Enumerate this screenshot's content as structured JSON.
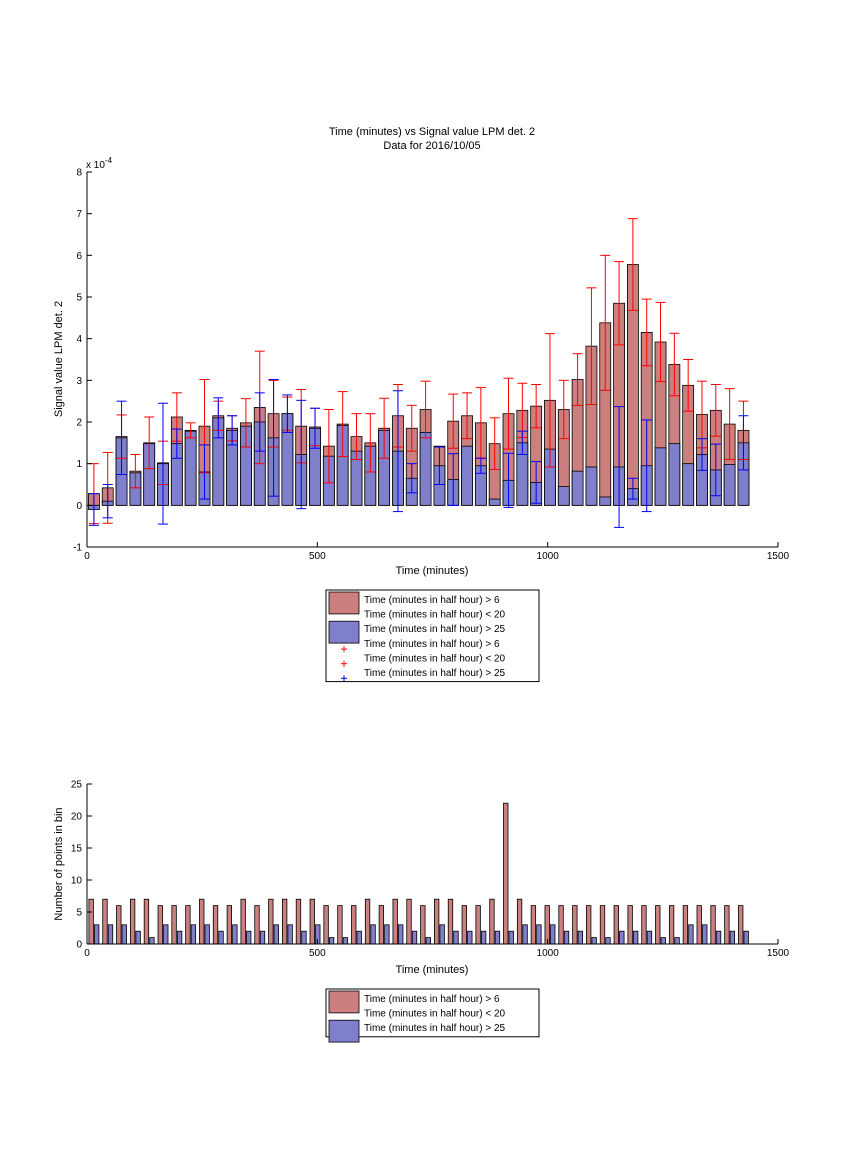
{
  "chart_data": [
    {
      "type": "bar",
      "title": "Time (minutes) vs Signal value LPM det. 2",
      "subtitle": "Data for 2016/10/05",
      "xlabel": "Time (minutes)",
      "ylabel": "Signal value LPM det. 2",
      "exponent_label": "x 10",
      "exponent_power": "-4",
      "xlim": [
        0,
        1500
      ],
      "ylim": [
        -1,
        8
      ],
      "xticks": [
        0,
        500,
        1000,
        1500
      ],
      "yticks": [
        -1,
        0,
        1,
        2,
        3,
        4,
        5,
        6,
        7,
        8
      ],
      "legend_position": "below",
      "legend": [
        {
          "label": "Time (minutes in half hour) > 6",
          "kind": "bar",
          "color": "#cc7f7f"
        },
        {
          "label": "Time (minutes in half hour) < 20",
          "kind": "none",
          "color": ""
        },
        {
          "label": "Time (minutes in half hour) > 25",
          "kind": "bar",
          "color": "#7f7fcc"
        },
        {
          "label": "Time (minutes in half hour) > 6",
          "kind": "plus",
          "color": "#ff0000"
        },
        {
          "label": "Time (minutes in half hour) < 20",
          "kind": "plus",
          "color": "#ff0000"
        },
        {
          "label": "Time (minutes in half hour) > 25",
          "kind": "plus",
          "color": "#0000ff"
        }
      ],
      "series": [
        {
          "color": "#cc7f7f",
          "err_color": "#ff0000",
          "x": [
            15,
            45,
            75,
            105,
            135,
            165,
            195,
            225,
            255,
            285,
            315,
            345,
            375,
            405,
            435,
            465,
            495,
            525,
            555,
            585,
            615,
            645,
            675,
            705,
            735,
            765,
            795,
            825,
            855,
            885,
            915,
            945,
            975,
            1005,
            1035,
            1065,
            1095,
            1125,
            1155,
            1185,
            1215,
            1245,
            1275,
            1305,
            1335,
            1365,
            1395,
            1425
          ],
          "values": [
            0.28,
            0.42,
            1.65,
            0.82,
            1.5,
            1.02,
            2.12,
            1.8,
            1.9,
            2.15,
            1.85,
            1.98,
            2.35,
            2.2,
            2.2,
            1.9,
            1.88,
            1.42,
            1.95,
            1.65,
            1.5,
            1.85,
            2.15,
            1.85,
            2.3,
            1.42,
            2.02,
            2.15,
            1.98,
            1.48,
            2.2,
            2.28,
            2.38,
            2.52,
            2.3,
            3.02,
            3.82,
            4.38,
            4.85,
            5.78,
            4.15,
            3.92,
            3.38,
            2.88,
            2.18,
            2.28,
            1.95,
            1.8
          ],
          "err": [
            0.72,
            0.85,
            0.52,
            0.4,
            0.62,
            0.52,
            0.58,
            0.18,
            1.12,
            0.35,
            0.3,
            0.58,
            1.35,
            0.8,
            0.4,
            0.88,
            0.45,
            0.88,
            0.78,
            0.55,
            0.7,
            0.72,
            0.75,
            0.55,
            0.68,
            0.0,
            0.65,
            0.55,
            0.85,
            0.62,
            0.85,
            0.65,
            0.52,
            1.6,
            0.7,
            0.62,
            1.4,
            1.62,
            1.0,
            1.1,
            0.8,
            0.95,
            0.75,
            0.62,
            0.8,
            0.62,
            0.85,
            0.7
          ]
        },
        {
          "color": "#7f7fcc",
          "err_color": "#0000ff",
          "x": [
            15,
            45,
            75,
            105,
            135,
            165,
            195,
            225,
            255,
            285,
            315,
            345,
            375,
            405,
            435,
            465,
            495,
            525,
            555,
            585,
            615,
            645,
            675,
            705,
            735,
            765,
            795,
            825,
            855,
            885,
            915,
            945,
            975,
            1005,
            1035,
            1065,
            1095,
            1125,
            1155,
            1185,
            1215,
            1245,
            1275,
            1305,
            1335,
            1365,
            1395,
            1425
          ],
          "values": [
            -0.1,
            0.1,
            1.62,
            0.78,
            1.48,
            1.0,
            1.48,
            1.78,
            0.8,
            2.1,
            1.8,
            1.9,
            2.0,
            1.62,
            2.2,
            1.22,
            1.85,
            1.18,
            1.92,
            1.3,
            1.42,
            1.8,
            1.3,
            0.65,
            1.75,
            0.95,
            0.62,
            1.42,
            0.95,
            0.15,
            0.6,
            1.5,
            0.55,
            1.35,
            0.45,
            0.82,
            0.92,
            0.2,
            0.92,
            0.4,
            0.95,
            1.38,
            1.48,
            1.0,
            1.22,
            0.85,
            0.98,
            1.5
          ],
          "err": [
            0.38,
            0.4,
            0.88,
            0.0,
            0.0,
            1.45,
            0.35,
            0.0,
            0.65,
            0.48,
            0.35,
            0.0,
            0.7,
            1.4,
            0.45,
            1.3,
            0.48,
            0.0,
            0.0,
            0.0,
            0.0,
            0.0,
            1.45,
            0.35,
            0.0,
            0.45,
            0.62,
            0.0,
            0.18,
            0.0,
            0.65,
            0.28,
            0.5,
            0.0,
            0.0,
            0.0,
            0.0,
            0.0,
            1.45,
            0.25,
            1.1,
            0.0,
            0.0,
            0.0,
            0.38,
            0.62,
            0.0,
            0.65
          ]
        }
      ]
    },
    {
      "type": "bar",
      "title": "",
      "xlabel": "Time (minutes)",
      "ylabel": "Number of points in bin",
      "xlim": [
        0,
        1500
      ],
      "ylim": [
        0,
        25
      ],
      "xticks": [
        0,
        500,
        1000,
        1500
      ],
      "yticks": [
        0,
        5,
        10,
        15,
        20,
        25
      ],
      "legend_position": "below",
      "legend": [
        {
          "label": "Time (minutes in half hour) > 6",
          "kind": "bar",
          "color": "#cc7f7f"
        },
        {
          "label": "Time (minutes in half hour) < 20",
          "kind": "none",
          "color": ""
        },
        {
          "label": "Time (minutes in half hour) > 25",
          "kind": "bar",
          "color": "#7f7fcc"
        }
      ],
      "series": [
        {
          "color": "#cc7f7f",
          "x": [
            15,
            45,
            75,
            105,
            135,
            165,
            195,
            225,
            255,
            285,
            315,
            345,
            375,
            405,
            435,
            465,
            495,
            525,
            555,
            585,
            615,
            645,
            675,
            705,
            735,
            765,
            795,
            825,
            855,
            885,
            915,
            945,
            975,
            1005,
            1035,
            1065,
            1095,
            1125,
            1155,
            1185,
            1215,
            1245,
            1275,
            1305,
            1335,
            1365,
            1395,
            1425
          ],
          "values": [
            7,
            7,
            6,
            7,
            7,
            6,
            6,
            6,
            7,
            6,
            6,
            7,
            6,
            7,
            7,
            7,
            7,
            6,
            6,
            6,
            7,
            6,
            7,
            7,
            6,
            7,
            7,
            6,
            6,
            7,
            22,
            7,
            6,
            6,
            6,
            6,
            6,
            6,
            6,
            6,
            6,
            6,
            6,
            6,
            6,
            6,
            6,
            6
          ]
        },
        {
          "color": "#7f7fcc",
          "x": [
            15,
            45,
            75,
            105,
            135,
            165,
            195,
            225,
            255,
            285,
            315,
            345,
            375,
            405,
            435,
            465,
            495,
            525,
            555,
            585,
            615,
            645,
            675,
            705,
            735,
            765,
            795,
            825,
            855,
            885,
            915,
            945,
            975,
            1005,
            1035,
            1065,
            1095,
            1125,
            1155,
            1185,
            1215,
            1245,
            1275,
            1305,
            1335,
            1365,
            1395,
            1425
          ],
          "values": [
            3,
            3,
            3,
            2,
            1,
            3,
            2,
            3,
            3,
            2,
            3,
            2,
            2,
            3,
            3,
            2,
            3,
            1,
            1,
            2,
            3,
            3,
            3,
            2,
            1,
            3,
            2,
            2,
            2,
            2,
            2,
            3,
            3,
            3,
            2,
            2,
            1,
            1,
            2,
            2,
            2,
            1,
            1,
            3,
            3,
            2,
            2,
            2
          ]
        }
      ]
    }
  ]
}
